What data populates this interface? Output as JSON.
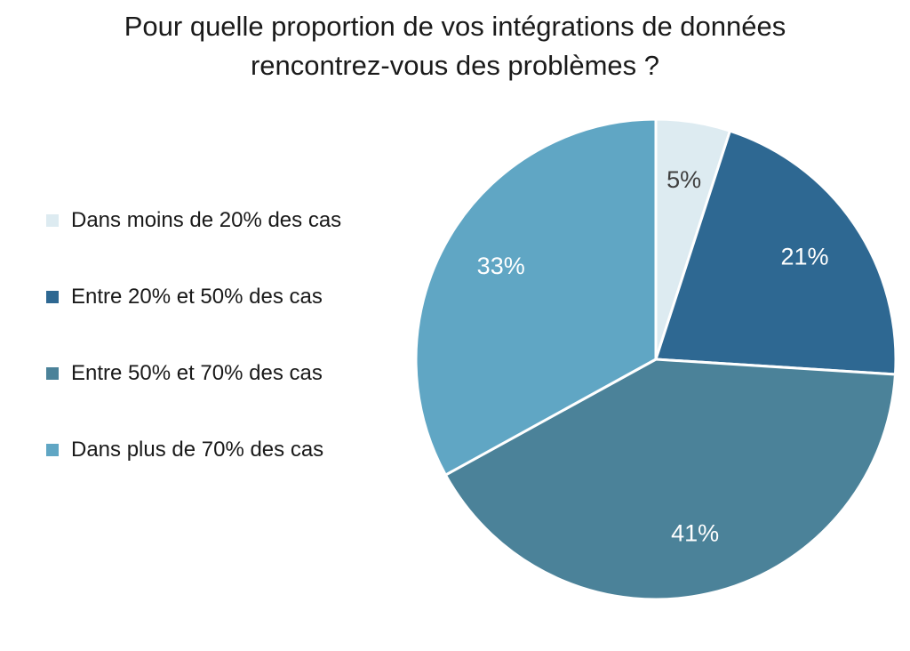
{
  "chart_data": {
    "type": "pie",
    "title_lines": [
      "Pour quelle proportion de vos intégrations de données",
      "rencontrez-vous des problèmes ?"
    ],
    "categories": [
      "Dans moins de 20% des cas",
      "Entre 20% et 50% des cas",
      "Entre 50% et 70% des cas",
      "Dans plus de 70% des cas"
    ],
    "values": [
      5,
      21,
      41,
      33
    ],
    "value_labels": [
      "5%",
      "21%",
      "41%",
      "33%"
    ],
    "colors": [
      "#DDEBF1",
      "#2E6892",
      "#4B8299",
      "#60A6C4"
    ],
    "label_colors": [
      "#404040",
      "#ffffff",
      "#ffffff",
      "#ffffff"
    ],
    "legend_position": "left"
  }
}
